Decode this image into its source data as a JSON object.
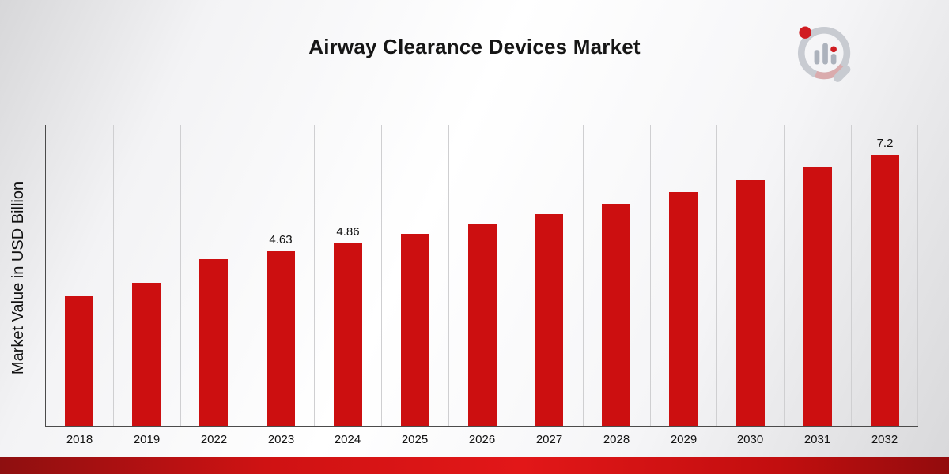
{
  "title": "Airway Clearance Devices Market",
  "ylabel": "Market Value in USD Billion",
  "logo": {
    "name": "market-research-magnifier-logo"
  },
  "colors": {
    "bar": "#cc0f10",
    "ribbon": "#cf1213",
    "gridline": "#cfcfd1",
    "axis": "#4b4b4b"
  },
  "chart_data": {
    "type": "bar",
    "title": "Airway Clearance Devices Market",
    "xlabel": "",
    "ylabel": "Market Value in USD Billion",
    "categories": [
      "2018",
      "2019",
      "2022",
      "2023",
      "2024",
      "2025",
      "2026",
      "2027",
      "2028",
      "2029",
      "2030",
      "2031",
      "2032"
    ],
    "values": [
      3.45,
      3.8,
      4.42,
      4.63,
      4.86,
      5.1,
      5.36,
      5.63,
      5.91,
      6.21,
      6.52,
      6.86,
      7.2
    ],
    "data_labels": [
      "",
      "",
      "",
      "4.63",
      "4.86",
      "",
      "",
      "",
      "",
      "",
      "",
      "",
      "7.2"
    ],
    "ylim": [
      0,
      8
    ],
    "bar_color": "#cc0f10",
    "grid": "vertical-only",
    "legend": null
  }
}
